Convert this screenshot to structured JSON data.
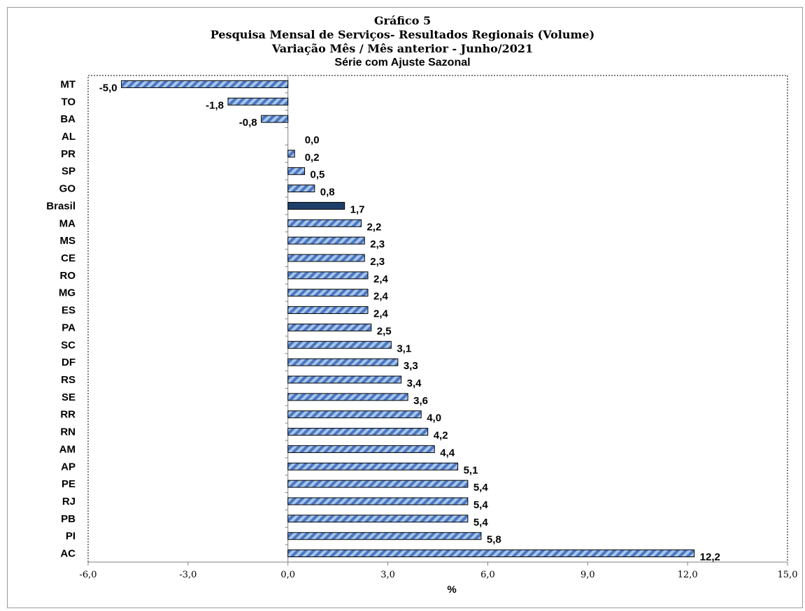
{
  "chart_data": {
    "type": "bar",
    "orientation": "horizontal",
    "title": "Gráfico 5",
    "subtitle_lines": [
      "Pesquisa Mensal de Serviços- Resultados Regionais (Volume)",
      "Variação Mês / Mês anterior - Junho/2021",
      "Série com Ajuste Sazonal"
    ],
    "xlabel": "%",
    "xlim": [
      -6,
      15
    ],
    "xticks": [
      "-6,0",
      "-3,0",
      "0,0",
      "3,0",
      "6,0",
      "9,0",
      "12,0",
      "15,0"
    ],
    "grid": false,
    "categories": [
      "MT",
      "TO",
      "BA",
      "AL",
      "PR",
      "SP",
      "GO",
      "Brasil",
      "MA",
      "MS",
      "CE",
      "RO",
      "MG",
      "ES",
      "PA",
      "SC",
      "DF",
      "RS",
      "SE",
      "RR",
      "RN",
      "AM",
      "AP",
      "PE",
      "RJ",
      "PB",
      "PI",
      "AC"
    ],
    "values": [
      -5.0,
      -1.8,
      -0.8,
      0.0,
      0.2,
      0.5,
      0.8,
      1.7,
      2.2,
      2.3,
      2.3,
      2.4,
      2.4,
      2.4,
      2.5,
      3.1,
      3.3,
      3.4,
      3.6,
      4.0,
      4.2,
      4.4,
      5.1,
      5.4,
      5.4,
      5.4,
      5.8,
      12.2
    ],
    "value_labels": [
      "-5,0",
      "-1,8",
      "-0,8",
      "0,0",
      "0,2",
      "0,5",
      "0,8",
      "1,7",
      "2,2",
      "2,3",
      "2,3",
      "2,4",
      "2,4",
      "2,4",
      "2,5",
      "3,1",
      "3,3",
      "3,4",
      "3,6",
      "4,0",
      "4,2",
      "4,4",
      "5,1",
      "5,4",
      "5,4",
      "5,4",
      "5,8",
      "12,2"
    ],
    "highlight_category": "Brasil",
    "colors": {
      "bar_fill": "#a9c4ea",
      "bar_stripe": "#4a78c2",
      "highlight": "#1f3f6b",
      "outline": "#000000"
    }
  }
}
